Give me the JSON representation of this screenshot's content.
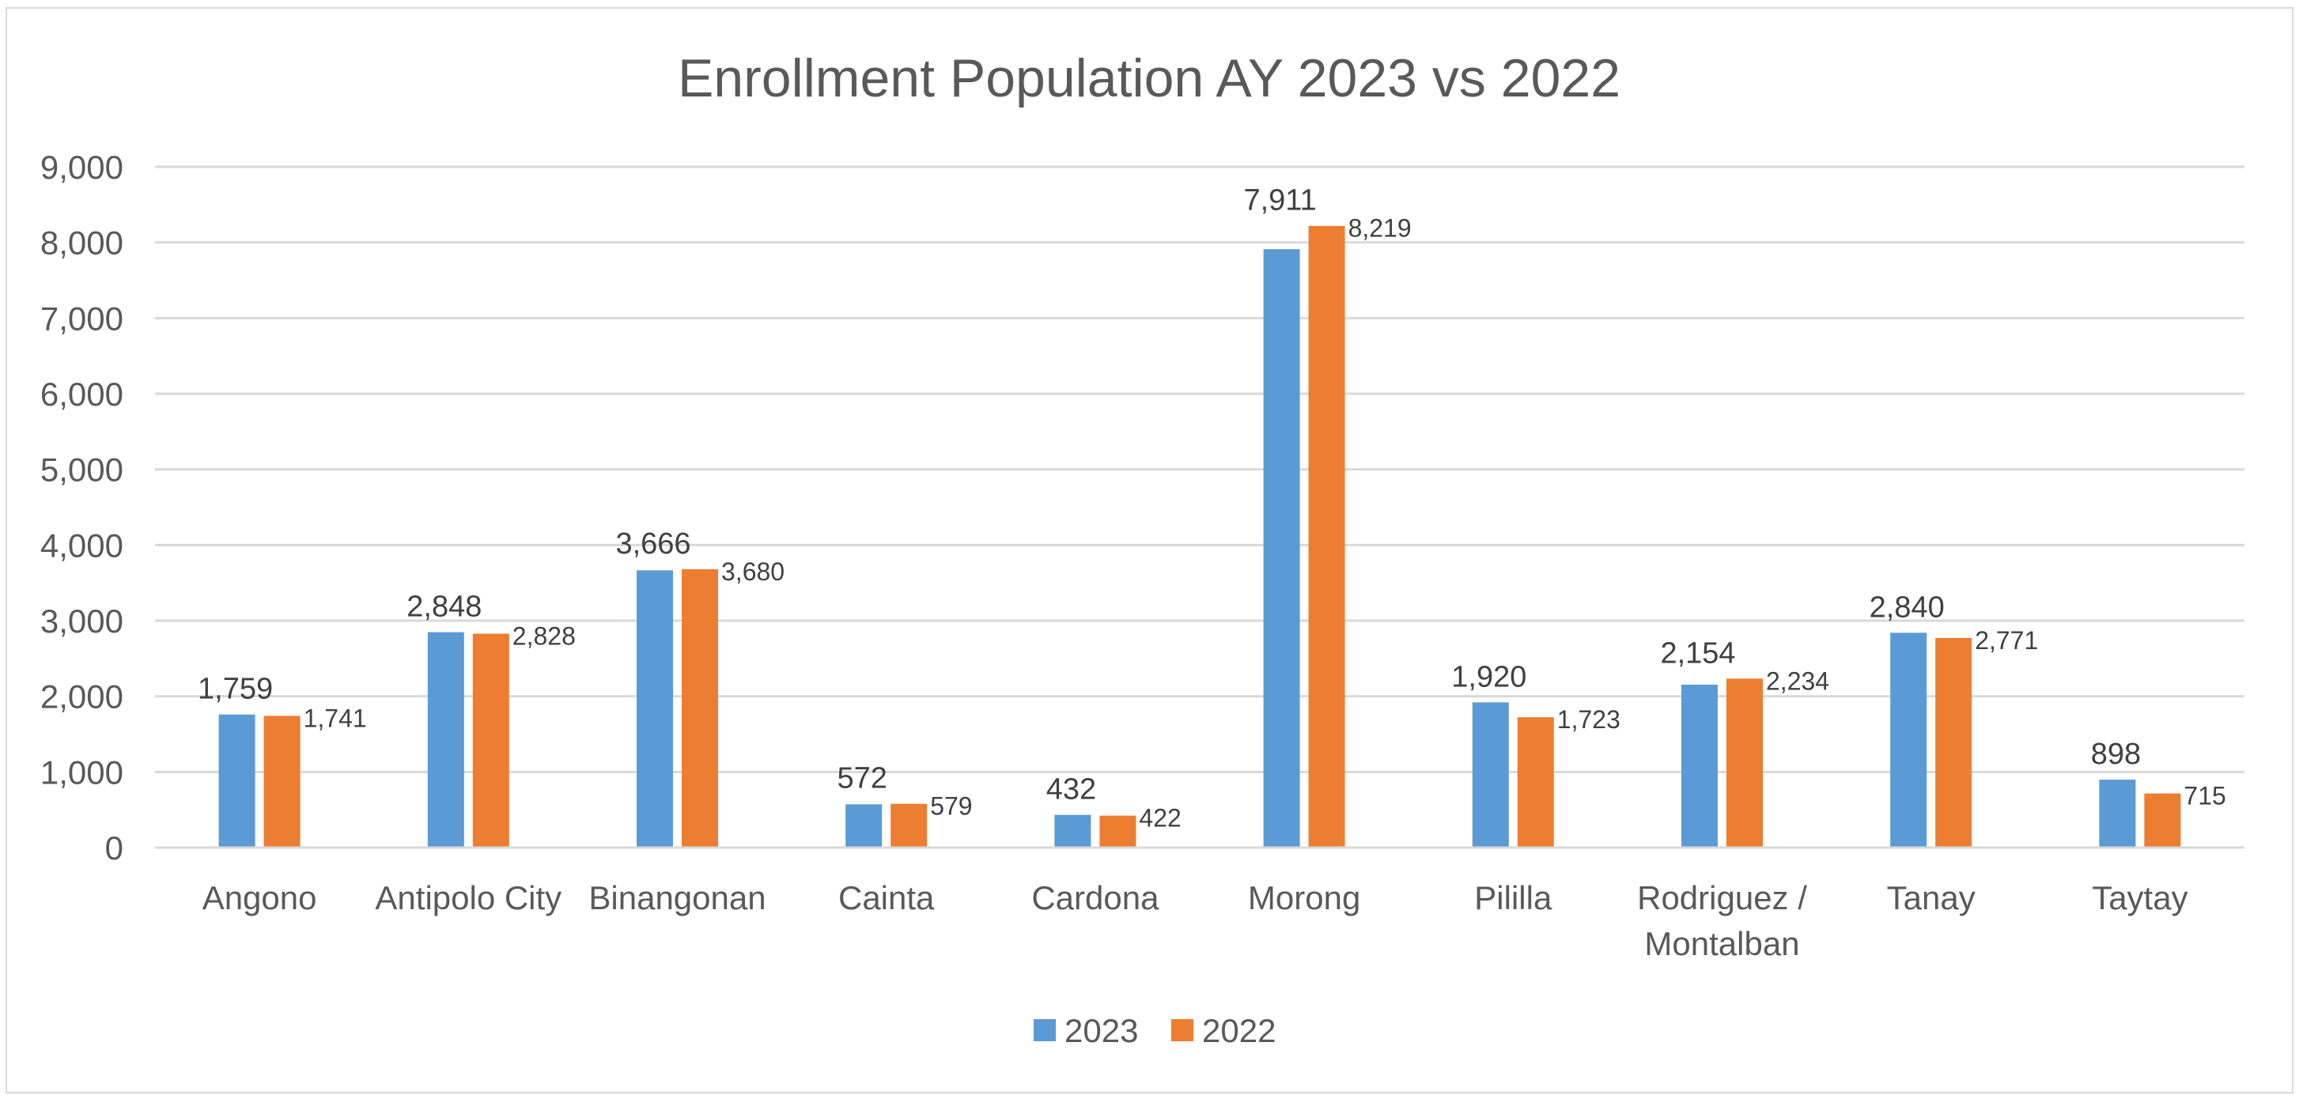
{
  "chart_data": {
    "type": "bar",
    "title": "Enrollment Population AY 2023 vs 2022",
    "xlabel": "",
    "ylabel": "",
    "ylim": [
      0,
      9000
    ],
    "ytick_step": 1000,
    "y_ticks": [
      "0",
      "1,000",
      "2,000",
      "3,000",
      "4,000",
      "5,000",
      "6,000",
      "7,000",
      "8,000",
      "9,000"
    ],
    "grid": true,
    "legend_position": "bottom",
    "categories": [
      [
        "Angono"
      ],
      [
        "Antipolo City"
      ],
      [
        "Binangonan"
      ],
      [
        "Cainta"
      ],
      [
        "Cardona"
      ],
      [
        "Morong"
      ],
      [
        "Pililla"
      ],
      [
        "Rodriguez /",
        "Montalban"
      ],
      [
        "Tanay"
      ],
      [
        "Taytay"
      ]
    ],
    "series": [
      {
        "name": "2023",
        "color": "#5b9bd5",
        "values": [
          1759,
          2848,
          3666,
          572,
          432,
          7911,
          1920,
          2154,
          2840,
          898
        ],
        "labels": [
          "1,759",
          "2,848",
          "3,666",
          "572",
          "432",
          "7,911",
          "1,920",
          "2,154",
          "2,840",
          "898"
        ]
      },
      {
        "name": "2022",
        "color": "#ed7d31",
        "values": [
          1741,
          2828,
          3680,
          579,
          422,
          8219,
          1723,
          2234,
          2771,
          715
        ],
        "labels": [
          "1,741",
          "2,828",
          "3,680",
          "579",
          "422",
          "8,219",
          "1,723",
          "2,234",
          "2,771",
          "715"
        ]
      }
    ]
  }
}
